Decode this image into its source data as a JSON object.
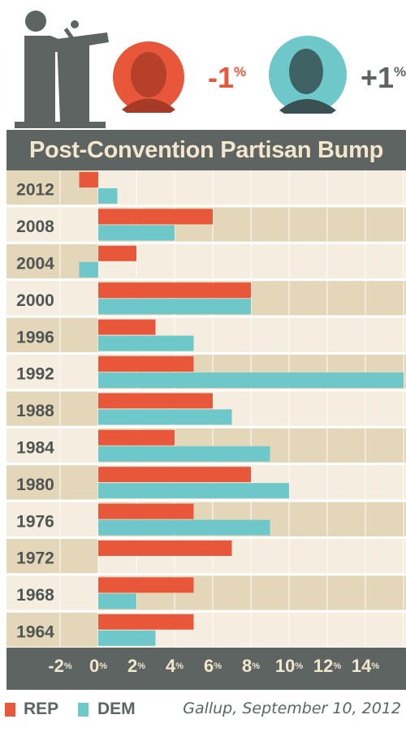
{
  "header": {
    "rep_change": "-1",
    "dem_change": "+1",
    "percent_sign": "%",
    "colors": {
      "rep": "#e8573a",
      "dem": "#6ec8c9",
      "dark": "#5d6462",
      "title_text": "#f2e6cc",
      "row_light": "#f5ede0",
      "row_dark": "#e4d6b8"
    }
  },
  "chart_data": {
    "type": "bar",
    "orientation": "horizontal",
    "title": "Post-Convention Partisan Bump",
    "categories": [
      "2012",
      "2008",
      "2004",
      "2000",
      "1996",
      "1992",
      "1988",
      "1984",
      "1980",
      "1976",
      "1972",
      "1968",
      "1964"
    ],
    "series": [
      {
        "name": "REP",
        "color": "#e8573a",
        "values": [
          -1,
          6,
          2,
          8,
          3,
          5,
          6,
          4,
          8,
          5,
          7,
          5,
          5
        ]
      },
      {
        "name": "DEM",
        "color": "#6ec8c9",
        "values": [
          1,
          4,
          -1,
          8,
          5,
          16,
          7,
          9,
          10,
          9,
          0,
          2,
          3
        ]
      }
    ],
    "x_ticks": [
      {
        "value": "-2",
        "unit": "%"
      },
      {
        "value": "0",
        "unit": "%"
      },
      {
        "value": "2",
        "unit": "%"
      },
      {
        "value": "4",
        "unit": "%"
      },
      {
        "value": "6",
        "unit": "%"
      },
      {
        "value": "8",
        "unit": "%"
      },
      {
        "value": "10",
        "unit": "%"
      },
      {
        "value": "12",
        "unit": "%"
      },
      {
        "value": "14",
        "unit": "%"
      }
    ],
    "xlim": [
      -3,
      16
    ],
    "grid": true,
    "legend": "bottom-left"
  },
  "legend": {
    "rep_label": "REP",
    "dem_label": "DEM"
  },
  "source": "Gallup, September 10, 2012"
}
